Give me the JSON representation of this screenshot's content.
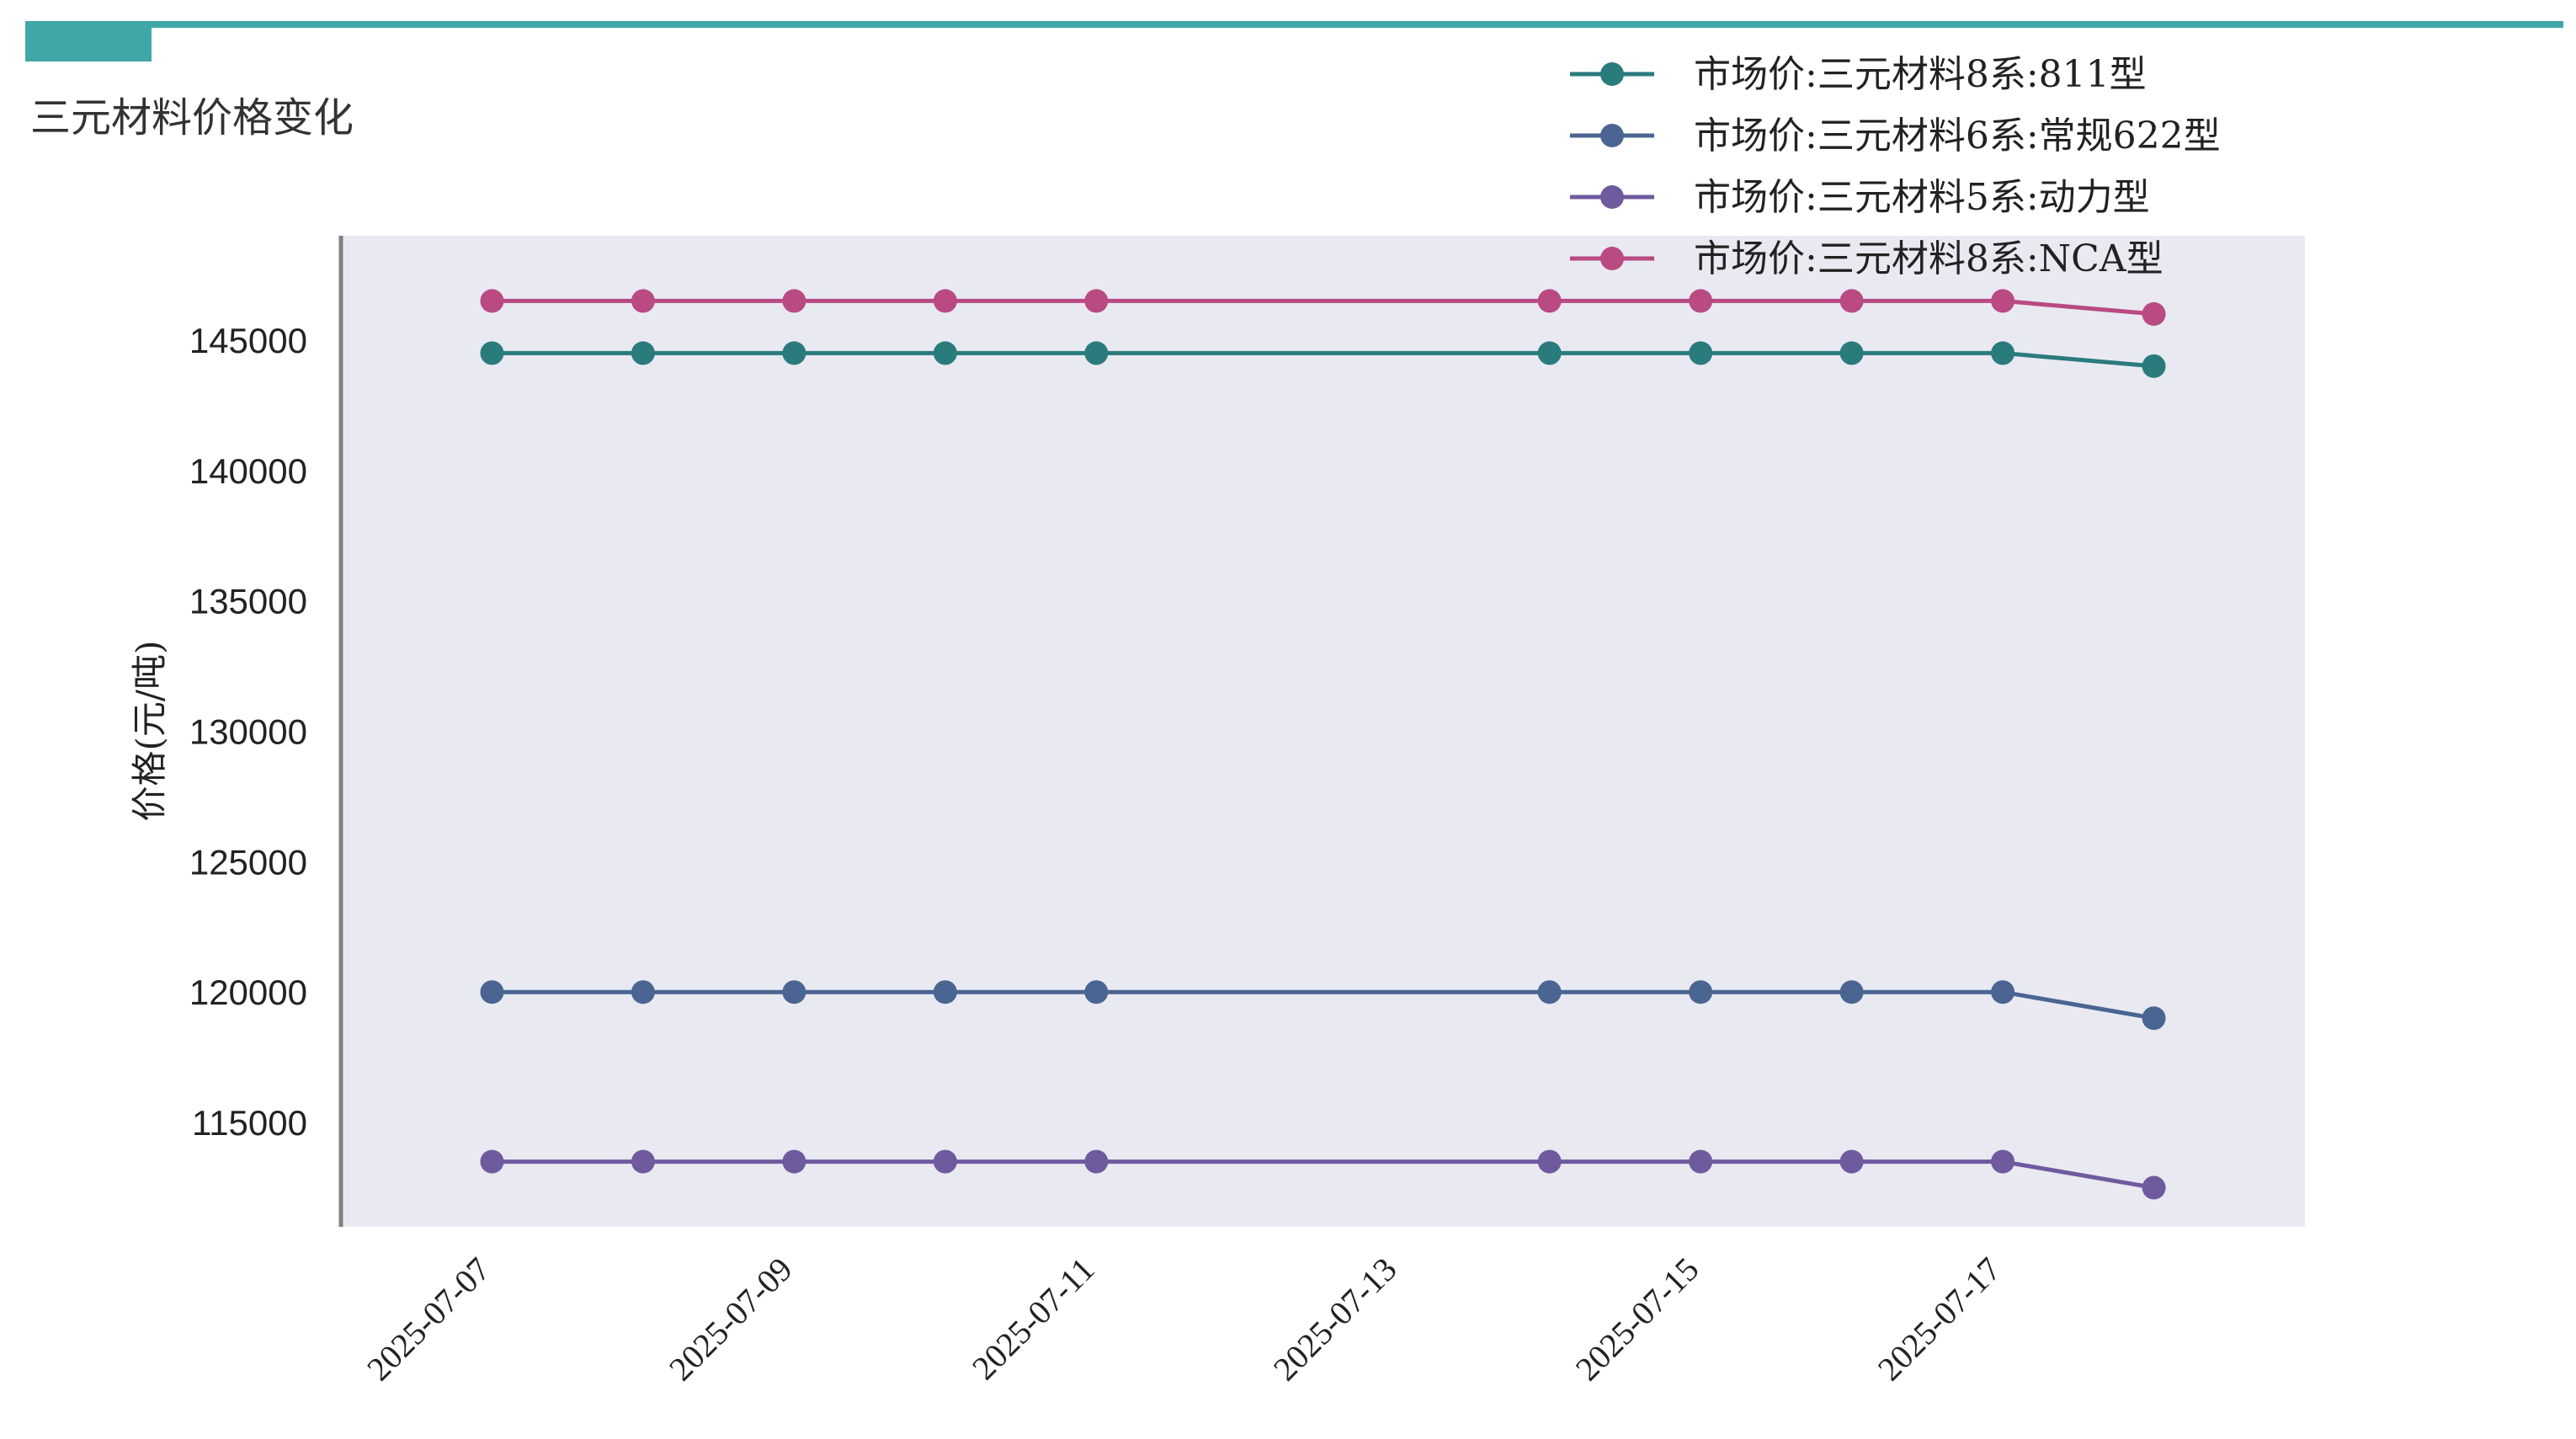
{
  "header": {
    "title": "三元材料价格变化"
  },
  "colors": {
    "accent_bar": "#40a7a9",
    "plot_background": "#e9e9f2",
    "axis_line": "#808080",
    "tick_text": "#222222"
  },
  "chart_data": {
    "type": "line",
    "title": "",
    "xlabel": "",
    "ylabel": "价格(元/吨)",
    "x": [
      "2025-07-07",
      "2025-07-08",
      "2025-07-09",
      "2025-07-10",
      "2025-07-11",
      "2025-07-14",
      "2025-07-15",
      "2025-07-16",
      "2025-07-17",
      "2025-07-18"
    ],
    "x_ticks": [
      "2025-07-07",
      "2025-07-09",
      "2025-07-11",
      "2025-07-13",
      "2025-07-15",
      "2025-07-17"
    ],
    "xlim": [
      "2025-07-06",
      "2025-07-19"
    ],
    "ylim": [
      111000,
      149000
    ],
    "y_ticks": [
      115000,
      120000,
      125000,
      130000,
      135000,
      140000,
      145000
    ],
    "grid": false,
    "legend_position": "top-right",
    "series": [
      {
        "name": "市场价:三元材料8系:811型",
        "color": "#2a7b7c",
        "values": [
          144500,
          144500,
          144500,
          144500,
          144500,
          144500,
          144500,
          144500,
          144500,
          144000
        ]
      },
      {
        "name": "市场价:三元材料6系:常规622型",
        "color": "#4a6591",
        "values": [
          120000,
          120000,
          120000,
          120000,
          120000,
          120000,
          120000,
          120000,
          120000,
          119000
        ]
      },
      {
        "name": "市场价:三元材料5系:动力型",
        "color": "#6f5a9e",
        "values": [
          113500,
          113500,
          113500,
          113500,
          113500,
          113500,
          113500,
          113500,
          113500,
          112500
        ]
      },
      {
        "name": "市场价:三元材料8系:NCA型",
        "color": "#b94a82",
        "values": [
          146500,
          146500,
          146500,
          146500,
          146500,
          146500,
          146500,
          146500,
          146500,
          146000
        ]
      }
    ]
  }
}
